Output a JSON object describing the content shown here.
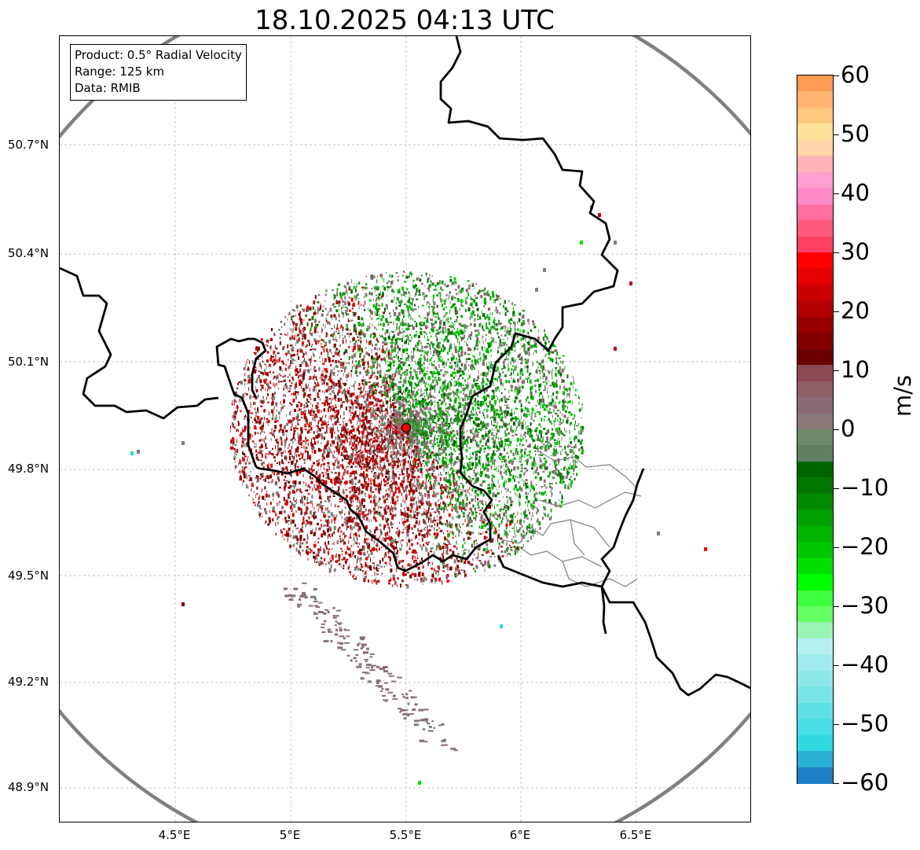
{
  "title": "18.10.2025 04:13 UTC",
  "info": {
    "product": "Product: 0.5° Radial Velocity",
    "range": "Range: 125 km",
    "data": "Data: RMIB"
  },
  "axes": {
    "lat_labels": [
      "50.7°N",
      "50.4°N",
      "50.1°N",
      "49.8°N",
      "49.5°N",
      "49.2°N",
      "48.9°N"
    ],
    "lon_labels": [
      "4.5°E",
      "5°E",
      "5.5°E",
      "6°E",
      "6.5°E"
    ]
  },
  "colorbar": {
    "unit": "m/s",
    "ticks": [
      "60",
      "50",
      "40",
      "30",
      "20",
      "10",
      "0",
      "−10",
      "−20",
      "−30",
      "−40",
      "−50",
      "−60"
    ],
    "colors_top_to_bottom": [
      "#ff9a54",
      "#ffb370",
      "#ffc87f",
      "#ffe29a",
      "#ffd6a8",
      "#ffb3b8",
      "#ff9fcf",
      "#ff88c8",
      "#ff6f9f",
      "#ff5a7a",
      "#ff4060",
      "#ff0000",
      "#e60000",
      "#cc0000",
      "#b20000",
      "#990000",
      "#800000",
      "#6b0000",
      "#8a4a54",
      "#8f5f68",
      "#8a6a74",
      "#887878",
      "#6d8a6a",
      "#5f8060",
      "#006400",
      "#007800",
      "#008c00",
      "#00a000",
      "#00b400",
      "#00c800",
      "#00e000",
      "#00ff00",
      "#40ff40",
      "#66ff66",
      "#99f5b3",
      "#b3eef0",
      "#a0ebec",
      "#8ee8ea",
      "#78e4e8",
      "#60e0e6",
      "#48dce3",
      "#30d8e0",
      "#2ab0d4",
      "#1f7fc4"
    ]
  },
  "colors": {
    "receding_red": "#cc0000",
    "approaching_green": "#00a000",
    "zero_gray": "#887878",
    "range_ring": "#808080",
    "radar_site": "#ff0000"
  }
}
